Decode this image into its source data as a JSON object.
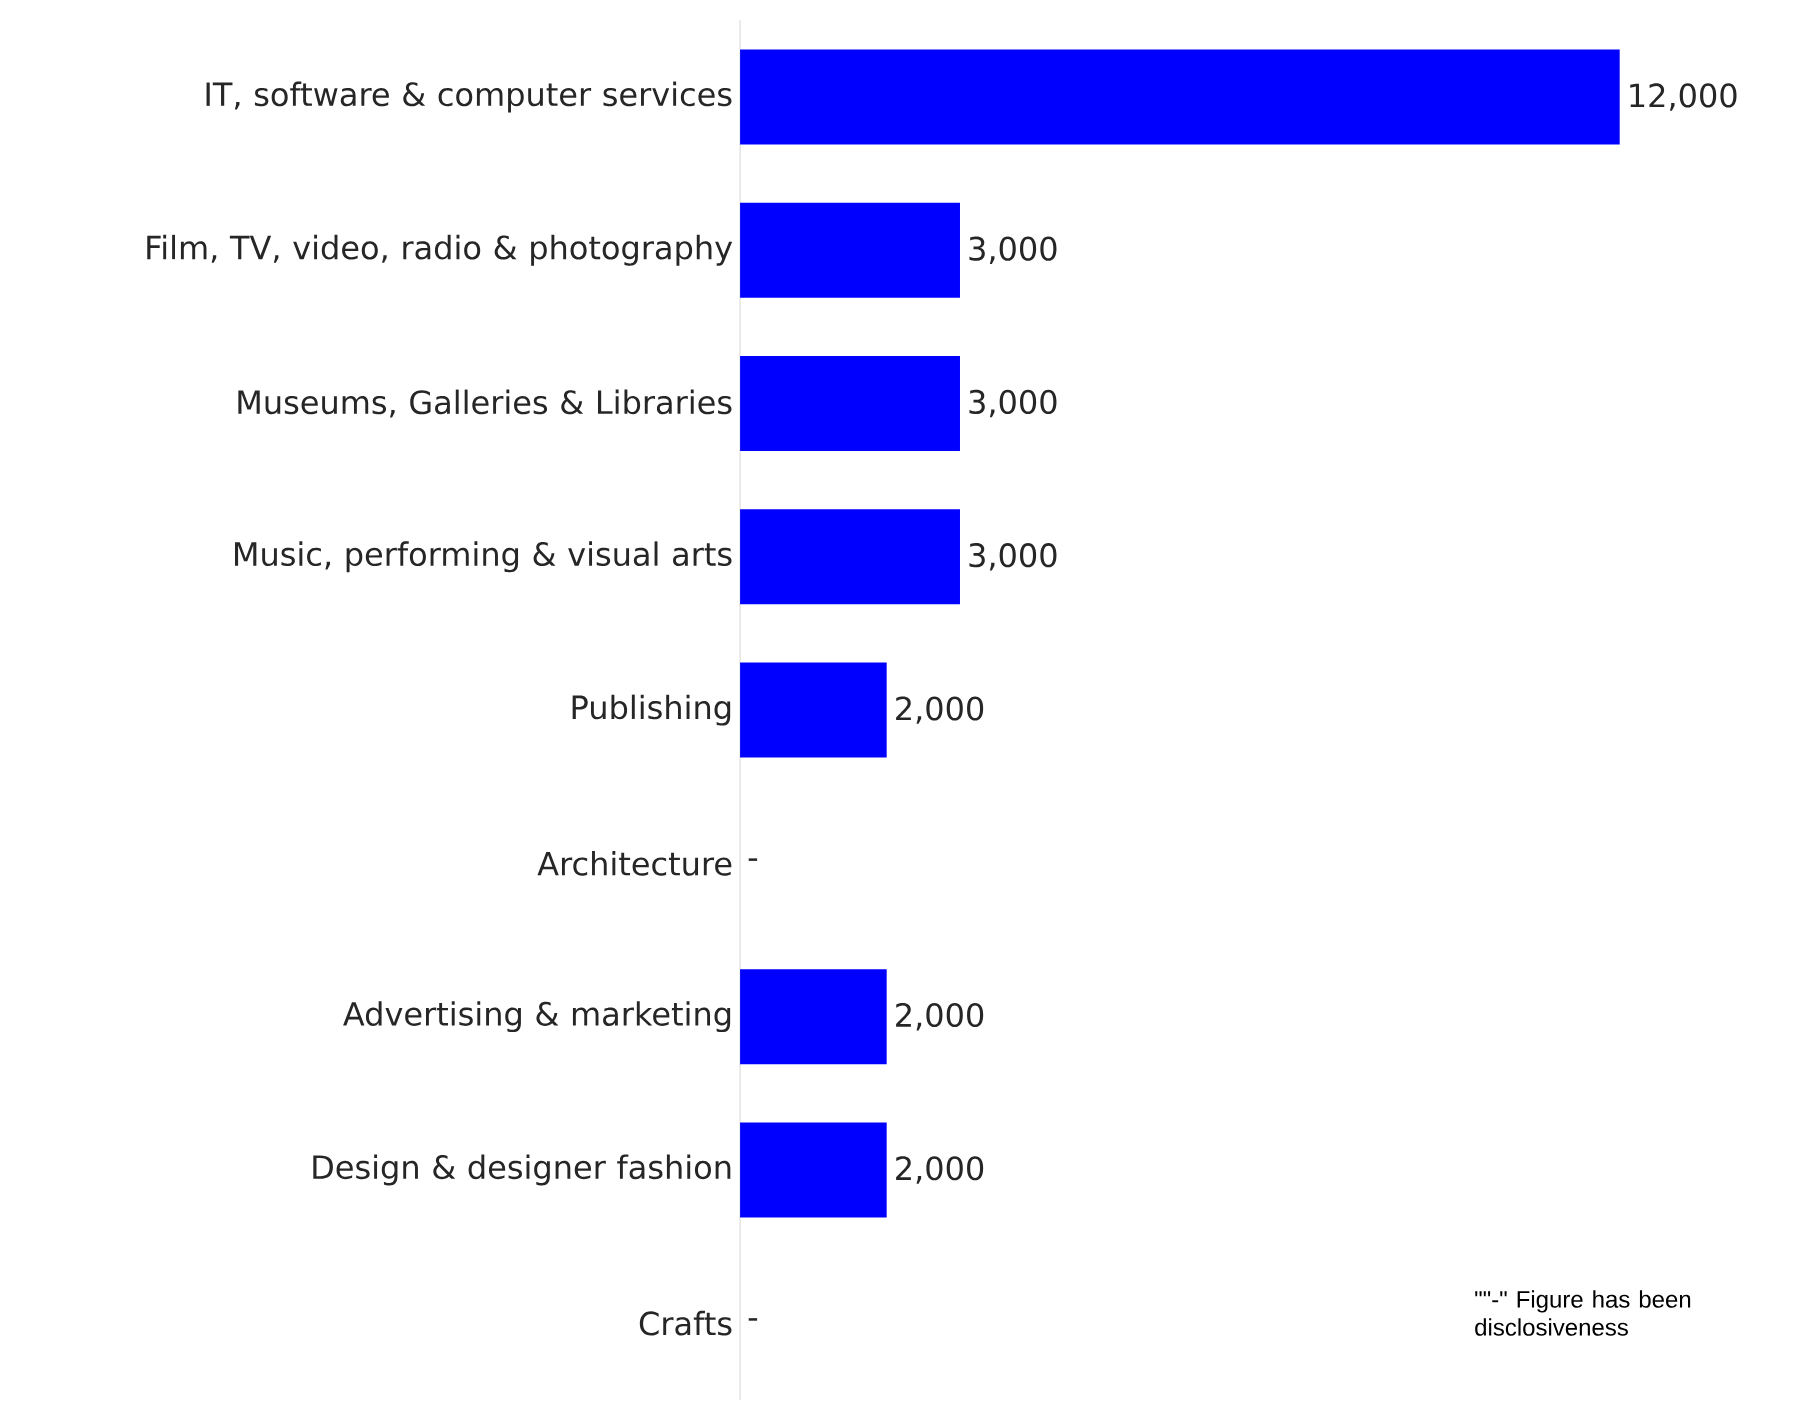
{
  "chart_data": {
    "type": "bar",
    "orientation": "horizontal",
    "categories": [
      "IT, software & computer services",
      "Film, TV, video, radio & photography",
      "Museums, Galleries & Libraries",
      "Music, performing & visual arts",
      "Publishing",
      "Architecture",
      "Advertising & marketing",
      "Design & designer fashion",
      "Crafts"
    ],
    "values": [
      12000,
      3000,
      3000,
      3000,
      2000,
      null,
      2000,
      2000,
      null
    ],
    "value_labels": [
      "12,000",
      "3,000",
      "3,000",
      "3,000",
      "2,000",
      "-",
      "2,000",
      "2,000",
      "-"
    ],
    "color": "#0000ff",
    "annotations": [
      "\"\"-\" Figure has been disclosiveness"
    ]
  }
}
